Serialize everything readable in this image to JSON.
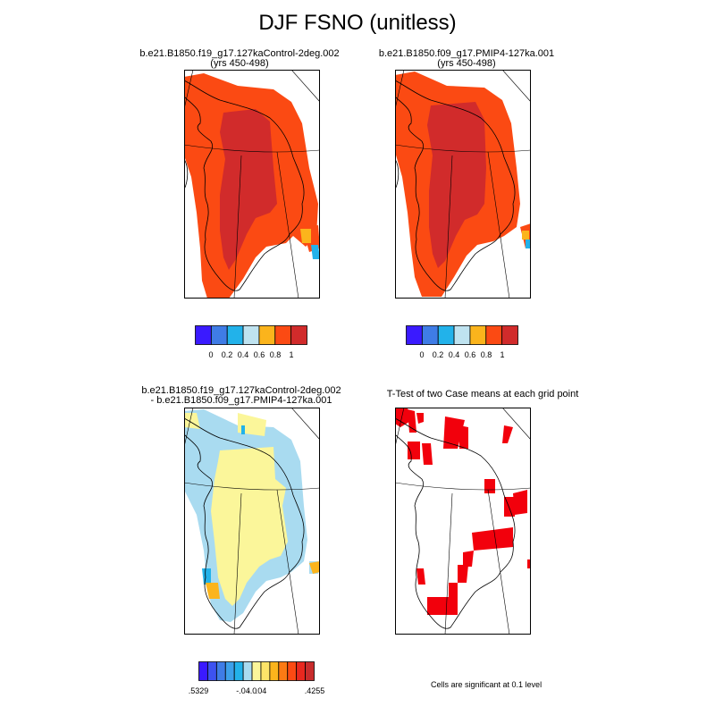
{
  "figure": {
    "title": "DJF FSNO (unitless)"
  },
  "panels": [
    {
      "id": "control",
      "title_line1": "b.e21.B1850.f19_g17.127kaControl-2deg.002",
      "title_line2": "(yrs 450-498)"
    },
    {
      "id": "pmip4",
      "title_line1": "b.e21.B1850.f09_g17.PMIP4-127ka.001",
      "title_line2": "(yrs 450-498)"
    },
    {
      "id": "difference",
      "title_line1": "b.e21.B1850.f19_g17.127kaControl-2deg.002",
      "title_line2": "- b.e21.B1850.f09_g17.PMIP4-127ka.001"
    },
    {
      "id": "ttest",
      "title_line1": "T-Test of two Case means at each grid point"
    }
  ],
  "colorbars": {
    "absolute": {
      "colors": [
        "#3a1aff",
        "#3f7ce6",
        "#22b2ea",
        "#bfe3f0",
        "#fbb41c",
        "#fb4a13",
        "#d12b2b"
      ],
      "labels": [
        "0",
        "0.2",
        "0.4",
        "0.6",
        "0.8",
        "1"
      ]
    },
    "difference": {
      "colors": [
        "#3a1aff",
        "#3d52f0",
        "#3f7ce6",
        "#3da0ea",
        "#22b2ea",
        "#a9dbf0",
        "#fbf69a",
        "#fce469",
        "#fbb41c",
        "#fb7a14",
        "#fb4a13",
        "#e8281f",
        "#c82c2c"
      ],
      "labels": [
        ".5329",
        "-.04",
        "-.0",
        ".04",
        ".4255"
      ]
    }
  },
  "significance_note": "Cells are significant at 0.1 level",
  "map_colors": {
    "high": "#d12b2b",
    "mid": "#fb4a13",
    "orange": "#fbb41c",
    "lightblue": "#a9dbf0",
    "yellow": "#fbf69a",
    "blue": "#22b2ea",
    "sig": "#f2000c",
    "outline": "#000000"
  }
}
